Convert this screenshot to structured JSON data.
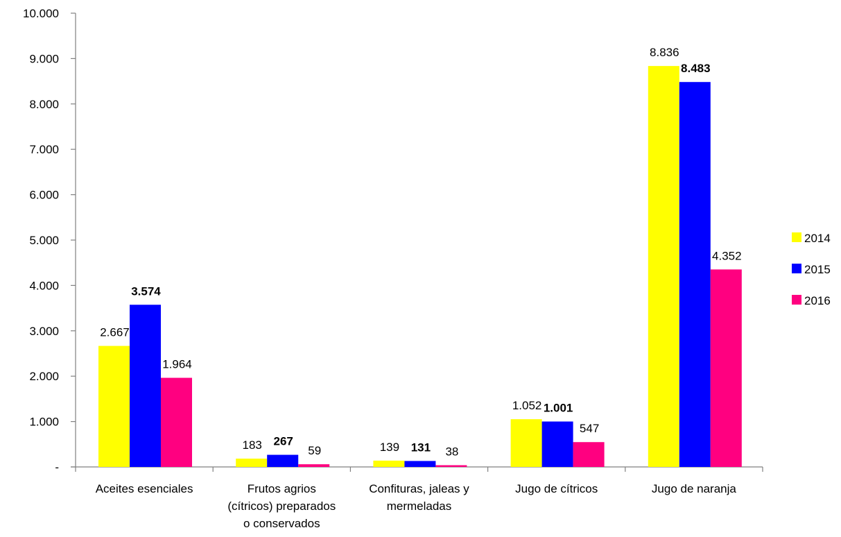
{
  "chart_data": {
    "type": "bar",
    "categories": [
      "Aceites esenciales",
      "Frutos agrios (cítricos) preparados o conservados",
      "Confituras, jaleas y mermeladas",
      "Jugo de cítricos",
      "Jugo de naranja"
    ],
    "category_label_lines": [
      [
        "Aceites esenciales"
      ],
      [
        "Frutos agrios",
        "(cítricos) preparados",
        "o conservados"
      ],
      [
        "Confituras, jaleas y",
        "mermeladas"
      ],
      [
        "Jugo de cítricos"
      ],
      [
        "Jugo de naranja"
      ]
    ],
    "series": [
      {
        "name": "2014",
        "color": "#ffff00",
        "values": [
          2667,
          183,
          139,
          1052,
          8836
        ],
        "labels": [
          "2.667",
          "183",
          "139",
          "1.052",
          "8.836"
        ],
        "label_bold": false
      },
      {
        "name": "2015",
        "color": "#0000ff",
        "values": [
          3574,
          267,
          131,
          1001,
          8483
        ],
        "labels": [
          "3.574",
          "267",
          "131",
          "1.001",
          "8.483"
        ],
        "label_bold": true
      },
      {
        "name": "2016",
        "color": "#ff0080",
        "values": [
          1964,
          59,
          38,
          547,
          4352
        ],
        "labels": [
          "1.964",
          "59",
          "38",
          "547",
          "4.352"
        ],
        "label_bold": false
      }
    ],
    "ylim": [
      0,
      10000
    ],
    "yticks": [
      0,
      1000,
      2000,
      3000,
      4000,
      5000,
      6000,
      7000,
      8000,
      9000,
      10000
    ],
    "ytick_labels": [
      "-",
      "1.000",
      "2.000",
      "3.000",
      "4.000",
      "5.000",
      "6.000",
      "7.000",
      "8.000",
      "9.000",
      "10.000"
    ],
    "grid": false,
    "legend_position": "right",
    "title": "",
    "xlabel": "",
    "ylabel": ""
  }
}
